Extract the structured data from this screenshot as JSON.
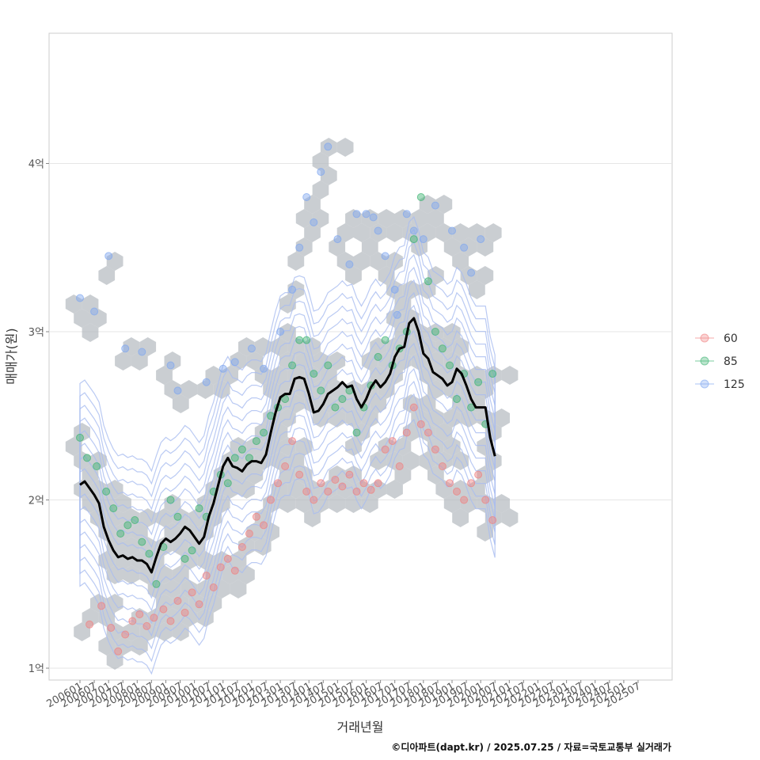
{
  "chart_data": {
    "type": "scatter",
    "xlabel": "거래년월",
    "ylabel": "매매가(원)",
    "caption": "©디아파트(dapt.kr) / 2025.07.25 / 자료=국토교통부 실거래가",
    "x_ticks": [
      "200601",
      "200607",
      "200701",
      "200707",
      "200801",
      "200807",
      "200901",
      "200907",
      "201001",
      "201007",
      "201101",
      "201107",
      "201201",
      "201207",
      "201301",
      "201307",
      "201401",
      "201407",
      "201501",
      "201507",
      "201601",
      "201607",
      "201701",
      "201707",
      "201801",
      "201807",
      "201901",
      "201907",
      "202001",
      "202007",
      "202101",
      "202107",
      "202201",
      "202207",
      "202301",
      "202307",
      "202401",
      "202407",
      "202501",
      "202507"
    ],
    "y_ticks": [
      {
        "value": 1,
        "label": "1억"
      },
      {
        "value": 2,
        "label": "2억"
      },
      {
        "value": 3,
        "label": "3억"
      },
      {
        "value": 4,
        "label": "4억"
      }
    ],
    "ylim": [
      0.93,
      4.77
    ],
    "grid": true,
    "legend": {
      "position": "right",
      "entries": [
        {
          "label": "60",
          "color": "#f08080"
        },
        {
          "label": "85",
          "color": "#3cb371"
        },
        {
          "label": "125",
          "color": "#7fa7f0"
        }
      ]
    },
    "trend_line": {
      "color": "#000000",
      "points": [
        [
          "2006-01",
          2.09
        ],
        [
          "2006-03",
          2.11
        ],
        [
          "2006-05",
          2.07
        ],
        [
          "2006-07",
          2.03
        ],
        [
          "2006-09",
          1.98
        ],
        [
          "2006-11",
          1.84
        ],
        [
          "2007-01",
          1.76
        ],
        [
          "2007-03",
          1.7
        ],
        [
          "2007-05",
          1.66
        ],
        [
          "2007-07",
          1.67
        ],
        [
          "2007-09",
          1.65
        ],
        [
          "2007-11",
          1.66
        ],
        [
          "2008-01",
          1.64
        ],
        [
          "2008-03",
          1.64
        ],
        [
          "2008-05",
          1.62
        ],
        [
          "2008-07",
          1.57
        ],
        [
          "2008-09",
          1.66
        ],
        [
          "2008-11",
          1.74
        ],
        [
          "2009-01",
          1.77
        ],
        [
          "2009-03",
          1.75
        ],
        [
          "2009-05",
          1.77
        ],
        [
          "2009-07",
          1.8
        ],
        [
          "2009-09",
          1.84
        ],
        [
          "2009-11",
          1.82
        ],
        [
          "2010-01",
          1.78
        ],
        [
          "2010-03",
          1.74
        ],
        [
          "2010-05",
          1.78
        ],
        [
          "2010-07",
          1.9
        ],
        [
          "2010-09",
          1.98
        ],
        [
          "2010-11",
          2.09
        ],
        [
          "2011-01",
          2.2
        ],
        [
          "2011-03",
          2.25
        ],
        [
          "2011-05",
          2.2
        ],
        [
          "2011-07",
          2.19
        ],
        [
          "2011-09",
          2.17
        ],
        [
          "2011-11",
          2.21
        ],
        [
          "2012-01",
          2.23
        ],
        [
          "2012-03",
          2.23
        ],
        [
          "2012-05",
          2.22
        ],
        [
          "2012-07",
          2.27
        ],
        [
          "2012-09",
          2.4
        ],
        [
          "2012-11",
          2.52
        ],
        [
          "2013-01",
          2.61
        ],
        [
          "2013-03",
          2.63
        ],
        [
          "2013-05",
          2.63
        ],
        [
          "2013-07",
          2.72
        ],
        [
          "2013-09",
          2.73
        ],
        [
          "2013-11",
          2.72
        ],
        [
          "2014-01",
          2.63
        ],
        [
          "2014-03",
          2.52
        ],
        [
          "2014-05",
          2.53
        ],
        [
          "2014-07",
          2.57
        ],
        [
          "2014-09",
          2.63
        ],
        [
          "2014-11",
          2.65
        ],
        [
          "2015-01",
          2.67
        ],
        [
          "2015-03",
          2.7
        ],
        [
          "2015-05",
          2.67
        ],
        [
          "2015-07",
          2.68
        ],
        [
          "2015-09",
          2.6
        ],
        [
          "2015-11",
          2.55
        ],
        [
          "2016-01",
          2.6
        ],
        [
          "2016-03",
          2.67
        ],
        [
          "2016-05",
          2.71
        ],
        [
          "2016-07",
          2.67
        ],
        [
          "2016-09",
          2.7
        ],
        [
          "2016-11",
          2.75
        ],
        [
          "2017-01",
          2.85
        ],
        [
          "2017-03",
          2.9
        ],
        [
          "2017-05",
          2.91
        ],
        [
          "2017-07",
          3.05
        ],
        [
          "2017-09",
          3.08
        ],
        [
          "2017-11",
          3.0
        ],
        [
          "2018-01",
          2.87
        ],
        [
          "2018-03",
          2.84
        ],
        [
          "2018-05",
          2.76
        ],
        [
          "2018-07",
          2.74
        ],
        [
          "2018-09",
          2.72
        ],
        [
          "2018-11",
          2.68
        ],
        [
          "2019-01",
          2.7
        ],
        [
          "2019-03",
          2.78
        ],
        [
          "2019-05",
          2.75
        ],
        [
          "2019-07",
          2.68
        ],
        [
          "2019-09",
          2.6
        ],
        [
          "2019-11",
          2.55
        ],
        [
          "2020-01",
          2.55
        ],
        [
          "2020-03",
          2.55
        ],
        [
          "2020-05",
          2.37
        ],
        [
          "2020-07",
          2.26
        ]
      ]
    },
    "series": [
      {
        "name": "60",
        "color": "#f08080",
        "points": [
          [
            "2006-05",
            1.26
          ],
          [
            "2006-10",
            1.37
          ],
          [
            "2007-02",
            1.24
          ],
          [
            "2007-05",
            1.1
          ],
          [
            "2007-08",
            1.2
          ],
          [
            "2007-11",
            1.28
          ],
          [
            "2008-02",
            1.32
          ],
          [
            "2008-05",
            1.25
          ],
          [
            "2008-08",
            1.3
          ],
          [
            "2008-12",
            1.35
          ],
          [
            "2009-03",
            1.28
          ],
          [
            "2009-06",
            1.4
          ],
          [
            "2009-09",
            1.33
          ],
          [
            "2009-12",
            1.45
          ],
          [
            "2010-03",
            1.38
          ],
          [
            "2010-06",
            1.55
          ],
          [
            "2010-09",
            1.48
          ],
          [
            "2010-12",
            1.6
          ],
          [
            "2011-03",
            1.65
          ],
          [
            "2011-06",
            1.58
          ],
          [
            "2011-09",
            1.72
          ],
          [
            "2011-12",
            1.8
          ],
          [
            "2012-03",
            1.9
          ],
          [
            "2012-06",
            1.85
          ],
          [
            "2012-09",
            2.0
          ],
          [
            "2012-12",
            2.1
          ],
          [
            "2013-03",
            2.2
          ],
          [
            "2013-06",
            2.35
          ],
          [
            "2013-09",
            2.15
          ],
          [
            "2013-12",
            2.05
          ],
          [
            "2014-03",
            2.0
          ],
          [
            "2014-06",
            2.1
          ],
          [
            "2014-09",
            2.05
          ],
          [
            "2014-12",
            2.12
          ],
          [
            "2015-03",
            2.08
          ],
          [
            "2015-06",
            2.15
          ],
          [
            "2015-09",
            2.05
          ],
          [
            "2015-12",
            2.1
          ],
          [
            "2016-03",
            2.06
          ],
          [
            "2016-06",
            2.1
          ],
          [
            "2016-09",
            2.3
          ],
          [
            "2016-12",
            2.35
          ],
          [
            "2017-03",
            2.2
          ],
          [
            "2017-06",
            2.4
          ],
          [
            "2017-09",
            2.55
          ],
          [
            "2017-12",
            2.45
          ],
          [
            "2018-03",
            2.4
          ],
          [
            "2018-06",
            2.3
          ],
          [
            "2018-09",
            2.2
          ],
          [
            "2018-12",
            2.1
          ],
          [
            "2019-03",
            2.05
          ],
          [
            "2019-06",
            2.0
          ],
          [
            "2019-09",
            2.1
          ],
          [
            "2019-12",
            2.15
          ],
          [
            "2020-03",
            2.0
          ],
          [
            "2020-06",
            1.88
          ]
        ]
      },
      {
        "name": "85",
        "color": "#3cb371",
        "points": [
          [
            "2006-01",
            2.37
          ],
          [
            "2006-04",
            2.25
          ],
          [
            "2006-08",
            2.2
          ],
          [
            "2006-12",
            2.05
          ],
          [
            "2007-03",
            1.95
          ],
          [
            "2007-06",
            1.8
          ],
          [
            "2007-09",
            1.85
          ],
          [
            "2007-12",
            1.88
          ],
          [
            "2008-03",
            1.75
          ],
          [
            "2008-06",
            1.68
          ],
          [
            "2008-09",
            1.5
          ],
          [
            "2008-12",
            1.72
          ],
          [
            "2009-03",
            2.0
          ],
          [
            "2009-06",
            1.9
          ],
          [
            "2009-09",
            1.65
          ],
          [
            "2009-12",
            1.7
          ],
          [
            "2010-03",
            1.95
          ],
          [
            "2010-06",
            1.9
          ],
          [
            "2010-09",
            2.05
          ],
          [
            "2010-12",
            2.15
          ],
          [
            "2011-03",
            2.1
          ],
          [
            "2011-06",
            2.25
          ],
          [
            "2011-09",
            2.3
          ],
          [
            "2011-12",
            2.25
          ],
          [
            "2012-03",
            2.35
          ],
          [
            "2012-06",
            2.4
          ],
          [
            "2012-09",
            2.5
          ],
          [
            "2012-12",
            2.55
          ],
          [
            "2013-03",
            2.6
          ],
          [
            "2013-06",
            2.8
          ],
          [
            "2013-09",
            2.95
          ],
          [
            "2013-12",
            2.95
          ],
          [
            "2014-03",
            2.75
          ],
          [
            "2014-06",
            2.65
          ],
          [
            "2014-09",
            2.8
          ],
          [
            "2014-12",
            2.55
          ],
          [
            "2015-03",
            2.6
          ],
          [
            "2015-06",
            2.65
          ],
          [
            "2015-09",
            2.4
          ],
          [
            "2015-12",
            2.55
          ],
          [
            "2016-03",
            2.68
          ],
          [
            "2016-06",
            2.85
          ],
          [
            "2016-09",
            2.95
          ],
          [
            "2016-12",
            2.8
          ],
          [
            "2017-03",
            2.9
          ],
          [
            "2017-06",
            3.0
          ],
          [
            "2017-09",
            3.55
          ],
          [
            "2017-12",
            3.8
          ],
          [
            "2018-03",
            3.3
          ],
          [
            "2018-06",
            3.0
          ],
          [
            "2018-09",
            2.9
          ],
          [
            "2018-12",
            2.8
          ],
          [
            "2019-03",
            2.6
          ],
          [
            "2019-06",
            2.75
          ],
          [
            "2019-09",
            2.55
          ],
          [
            "2019-12",
            2.7
          ],
          [
            "2020-03",
            2.45
          ],
          [
            "2020-06",
            2.75
          ]
        ]
      },
      {
        "name": "125",
        "color": "#7fa7f0",
        "points": [
          [
            "2006-01",
            3.2
          ],
          [
            "2006-07",
            3.12
          ],
          [
            "2007-01",
            3.45
          ],
          [
            "2007-08",
            2.9
          ],
          [
            "2008-03",
            2.88
          ],
          [
            "2009-03",
            2.8
          ],
          [
            "2009-06",
            2.65
          ],
          [
            "2010-06",
            2.7
          ],
          [
            "2011-01",
            2.78
          ],
          [
            "2011-06",
            2.82
          ],
          [
            "2012-01",
            2.9
          ],
          [
            "2012-06",
            2.78
          ],
          [
            "2013-01",
            3.0
          ],
          [
            "2013-06",
            3.25
          ],
          [
            "2013-09",
            3.5
          ],
          [
            "2013-12",
            3.8
          ],
          [
            "2014-03",
            3.65
          ],
          [
            "2014-06",
            3.95
          ],
          [
            "2014-09",
            4.1
          ],
          [
            "2015-01",
            3.55
          ],
          [
            "2015-06",
            3.4
          ],
          [
            "2015-09",
            3.7
          ],
          [
            "2016-01",
            3.7
          ],
          [
            "2016-06",
            3.6
          ],
          [
            "2016-09",
            3.45
          ],
          [
            "2017-01",
            3.25
          ],
          [
            "2017-06",
            3.7
          ],
          [
            "2017-09",
            3.6
          ],
          [
            "2018-01",
            3.55
          ],
          [
            "2018-06",
            3.75
          ],
          [
            "2019-01",
            3.6
          ],
          [
            "2019-06",
            3.5
          ],
          [
            "2019-09",
            3.35
          ],
          [
            "2020-01",
            3.55
          ],
          [
            "2016-04",
            3.68
          ],
          [
            "2017-02",
            3.1
          ]
        ]
      }
    ]
  }
}
